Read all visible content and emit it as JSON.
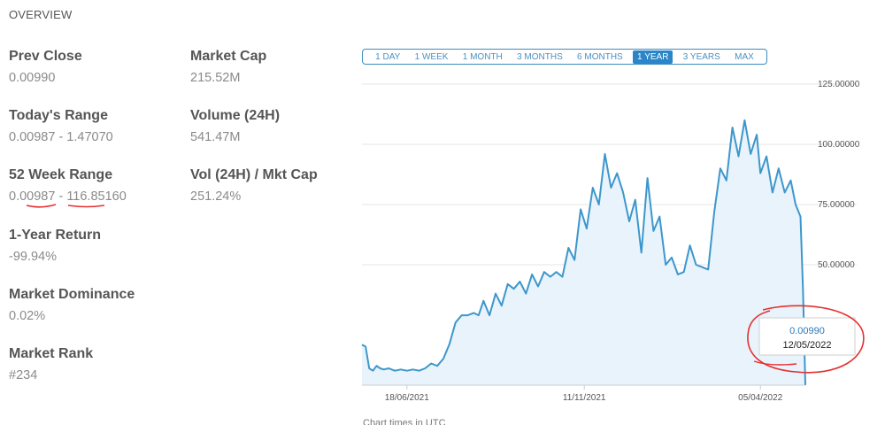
{
  "overview": {
    "title": "OVERVIEW",
    "stats": {
      "prev_close": {
        "label": "Prev Close",
        "value": "0.00990"
      },
      "market_cap": {
        "label": "Market Cap",
        "value": "215.52M"
      },
      "todays_range": {
        "label": "Today's Range",
        "value": "0.00987 - 1.47070"
      },
      "volume_24h": {
        "label": "Volume (24H)",
        "value": "541.47M"
      },
      "week52_range": {
        "label": "52 Week Range",
        "low": "0.00987",
        "separator": " - ",
        "high": "116.85160"
      },
      "vol_mkt_cap": {
        "label": "Vol (24H) / Mkt Cap",
        "value": "251.24%"
      },
      "year_return": {
        "label": "1-Year Return",
        "value": "-99.94%"
      },
      "market_dominance": {
        "label": "Market Dominance",
        "value": "0.02%"
      },
      "market_rank": {
        "label": "Market Rank",
        "value": "#234"
      }
    }
  },
  "range_buttons": {
    "items": [
      {
        "label": "1 DAY"
      },
      {
        "label": "1 WEEK"
      },
      {
        "label": "1 MONTH"
      },
      {
        "label": "3 MONTHS"
      },
      {
        "label": "6 MONTHS"
      },
      {
        "label": "1 YEAR",
        "active": true
      },
      {
        "label": "3 YEARS"
      },
      {
        "label": "MAX"
      }
    ]
  },
  "footnote": "Chart times in UTC",
  "chart_data": {
    "type": "area",
    "line_color": "#3d97cc",
    "fill_color": "#e9f3fb",
    "ylim": [
      0,
      125
    ],
    "y_ticks": [
      {
        "value": 50,
        "label": "50.00000"
      },
      {
        "value": 75,
        "label": "75.00000"
      },
      {
        "value": 100,
        "label": "100.00000"
      },
      {
        "value": 125,
        "label": "125.00000"
      }
    ],
    "xlim": [
      "2021-05-12",
      "2022-05-12"
    ],
    "x_ticks": [
      {
        "date": "2021-06-18",
        "label": "18/06/2021"
      },
      {
        "date": "2021-11-11",
        "label": "11/11/2021"
      },
      {
        "date": "2022-04-05",
        "label": "05/04/2022"
      }
    ],
    "series": [
      {
        "x": [
          "2021-05-12",
          "2021-05-15",
          "2021-05-18",
          "2021-05-21",
          "2021-05-24",
          "2021-05-27",
          "2021-05-30",
          "2021-06-03",
          "2021-06-08",
          "2021-06-13",
          "2021-06-18",
          "2021-06-23",
          "2021-06-28",
          "2021-07-03",
          "2021-07-08",
          "2021-07-13",
          "2021-07-18",
          "2021-07-23",
          "2021-07-28",
          "2021-08-02",
          "2021-08-07",
          "2021-08-12",
          "2021-08-16",
          "2021-08-20",
          "2021-08-25",
          "2021-08-30",
          "2021-09-04",
          "2021-09-09",
          "2021-09-14",
          "2021-09-19",
          "2021-09-24",
          "2021-09-29",
          "2021-10-04",
          "2021-10-09",
          "2021-10-14",
          "2021-10-19",
          "2021-10-24",
          "2021-10-29",
          "2021-11-03",
          "2021-11-08",
          "2021-11-13",
          "2021-11-18",
          "2021-11-23",
          "2021-11-28",
          "2021-12-03",
          "2021-12-08",
          "2021-12-13",
          "2021-12-18",
          "2021-12-23",
          "2021-12-28",
          "2022-01-02",
          "2022-01-07",
          "2022-01-12",
          "2022-01-17",
          "2022-01-22",
          "2022-01-27",
          "2022-02-01",
          "2022-02-06",
          "2022-02-11",
          "2022-02-16",
          "2022-02-21",
          "2022-02-26",
          "2022-03-03",
          "2022-03-08",
          "2022-03-13",
          "2022-03-18",
          "2022-03-23",
          "2022-03-28",
          "2022-04-02",
          "2022-04-05",
          "2022-04-10",
          "2022-04-15",
          "2022-04-20",
          "2022-04-25",
          "2022-04-30",
          "2022-05-04",
          "2022-05-08",
          "2022-05-10",
          "2022-05-12"
        ],
        "y": [
          16.8,
          16,
          7,
          6,
          8,
          7,
          6.5,
          7,
          6,
          6.5,
          6,
          6.5,
          6,
          7,
          9,
          8,
          11,
          17,
          26,
          29,
          29,
          30,
          29,
          35,
          29,
          38,
          33,
          42,
          40,
          43,
          38,
          46,
          41,
          47,
          45,
          47,
          45,
          57,
          52,
          73,
          65,
          82,
          75,
          96,
          82,
          88,
          80,
          68,
          77,
          55,
          86,
          64,
          70,
          50,
          53,
          46,
          47,
          58,
          50,
          49,
          48,
          72,
          90,
          85,
          107,
          95,
          110,
          96,
          104,
          88,
          95,
          80,
          90,
          80,
          85,
          75,
          70,
          40,
          0.01
        ]
      }
    ],
    "tooltip": {
      "value": "0.00990",
      "date": "12/05/2022"
    }
  }
}
